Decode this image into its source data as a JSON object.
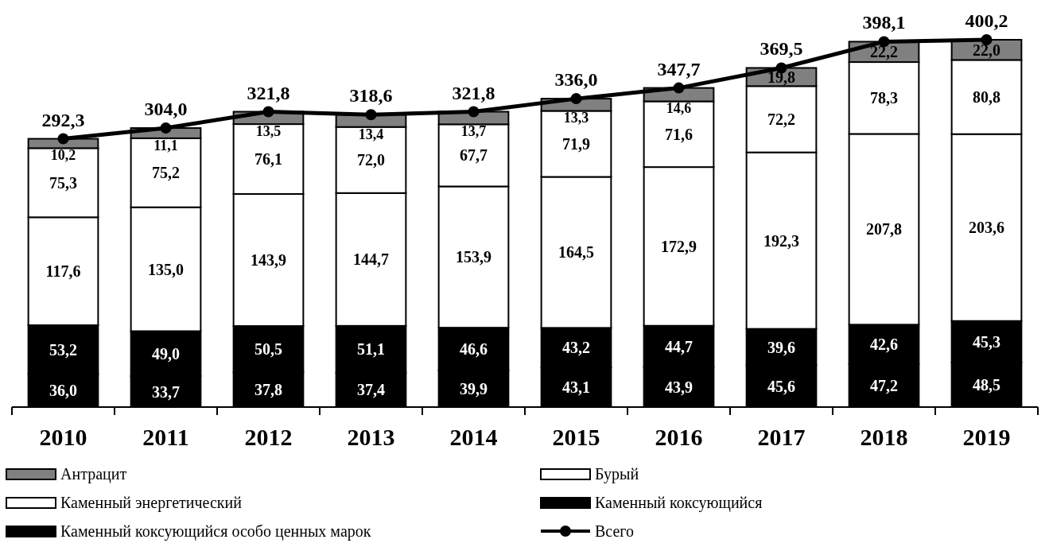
{
  "chart_data": {
    "type": "bar",
    "stacked": true,
    "legend": "bottom",
    "marker": "circle",
    "categories": [
      "2010",
      "2011",
      "2012",
      "2013",
      "2014",
      "2015",
      "2016",
      "2017",
      "2018",
      "2019"
    ],
    "series": [
      {
        "name": "Каменный коксующийся особо ценных марок",
        "color": "#000000",
        "values": [
          36.0,
          33.7,
          37.8,
          37.4,
          39.9,
          43.1,
          43.9,
          45.6,
          47.2,
          48.5
        ],
        "value_labels": [
          "36,0",
          "33,7",
          "37,8",
          "37,4",
          "39,9",
          "43,1",
          "43,9",
          "45,6",
          "47,2",
          "48,5"
        ]
      },
      {
        "name": "Каменный коксующийся",
        "color": "#000000",
        "values": [
          53.2,
          49.0,
          50.5,
          51.1,
          46.6,
          43.2,
          44.7,
          39.6,
          42.6,
          45.3
        ],
        "value_labels": [
          "53,2",
          "49,0",
          "50,5",
          "51,1",
          "46,6",
          "43,2",
          "44,7",
          "39,6",
          "42,6",
          "45,3"
        ]
      },
      {
        "name": "Каменный энергетический",
        "color": "#ffffff",
        "values": [
          117.6,
          135.0,
          143.9,
          144.7,
          153.9,
          164.5,
          172.9,
          192.3,
          207.8,
          203.6
        ],
        "value_labels": [
          "117,6",
          "135,0",
          "143,9",
          "144,7",
          "153,9",
          "164,5",
          "172,9",
          "192,3",
          "207,8",
          "203,6"
        ]
      },
      {
        "name": "Бурый",
        "color": "#ffffff",
        "values": [
          75.3,
          75.2,
          76.1,
          72.0,
          67.7,
          71.9,
          71.6,
          72.2,
          78.3,
          80.8
        ],
        "value_labels": [
          "75,3",
          "75,2",
          "76,1",
          "72,0",
          "67,7",
          "71,9",
          "71,6",
          "72,2",
          "78,3",
          "80,8"
        ]
      },
      {
        "name": "Антрацит",
        "color": "#808080",
        "values": [
          10.2,
          11.1,
          13.5,
          13.4,
          13.7,
          13.3,
          14.6,
          19.8,
          22.2,
          22.0
        ],
        "value_labels": [
          "10,2",
          "11,1",
          "13,5",
          "13,4",
          "13,7",
          "13,3",
          "14,6",
          "19,8",
          "22,2",
          "22,0"
        ]
      },
      {
        "name": "Всего",
        "type": "line",
        "color": "#000000",
        "values": [
          292.3,
          304.0,
          321.8,
          318.6,
          321.8,
          336.0,
          347.7,
          369.5,
          398.1,
          400.2
        ],
        "value_labels": [
          "292,3",
          "304,0",
          "321,8",
          "318,6",
          "321,8",
          "336,0",
          "347,7",
          "369,5",
          "398,1",
          "400,2"
        ]
      }
    ]
  }
}
